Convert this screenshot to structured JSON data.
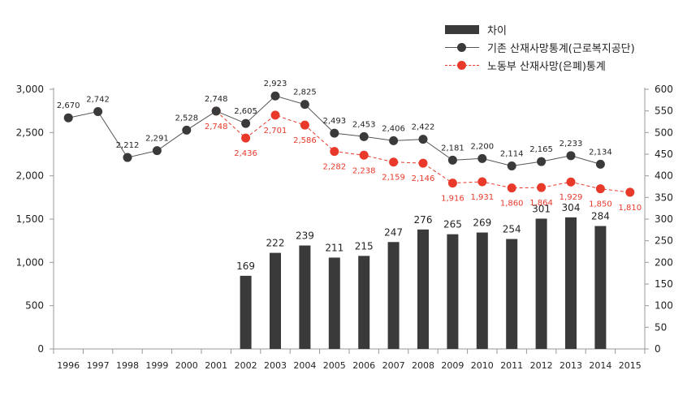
{
  "chart_data": {
    "type": "bar+line",
    "categories": [
      "1996",
      "1997",
      "1998",
      "1999",
      "2000",
      "2001",
      "2002",
      "2003",
      "2004",
      "2005",
      "2006",
      "2007",
      "2008",
      "2009",
      "2010",
      "2011",
      "2012",
      "2013",
      "2014",
      "2015"
    ],
    "left_axis": {
      "ylim": [
        0,
        3000
      ],
      "ticks": [
        "0",
        "500",
        "1,000",
        "1,500",
        "2,000",
        "2,500",
        "3,000"
      ]
    },
    "right_axis": {
      "ylim": [
        0,
        600
      ],
      "ticks": [
        "0",
        "50",
        "100",
        "150",
        "200",
        "250",
        "300",
        "350",
        "400",
        "450",
        "500",
        "550",
        "600"
      ]
    },
    "series": [
      {
        "name": "차이",
        "type": "bar",
        "axis": "right",
        "color": "#3a3a3a",
        "values": [
          null,
          null,
          null,
          null,
          null,
          null,
          169,
          222,
          239,
          211,
          215,
          247,
          276,
          265,
          269,
          254,
          301,
          304,
          284,
          null
        ],
        "labels": [
          "",
          "",
          "",
          "",
          "",
          "",
          "169",
          "222",
          "239",
          "211",
          "215",
          "247",
          "276",
          "265",
          "269",
          "254",
          "301",
          "304",
          "284",
          ""
        ]
      },
      {
        "name": "기존 산재사망통계(근로복지공단)",
        "type": "line",
        "axis": "left",
        "color": "#3a3a3a",
        "values": [
          2670,
          2742,
          2212,
          2291,
          2528,
          2748,
          2605,
          2923,
          2825,
          2493,
          2453,
          2406,
          2422,
          2181,
          2200,
          2114,
          2165,
          2233,
          2134,
          null
        ],
        "labels": [
          "2,670",
          "2,742",
          "2,212",
          "2,291",
          "2,528",
          "2,748",
          "2,605",
          "2,923",
          "2,825",
          "2,493",
          "2,453",
          "2,406",
          "2,422",
          "2,181",
          "2,200",
          "2,114",
          "2,165",
          "2,233",
          "2,134",
          ""
        ]
      },
      {
        "name": "노동부 산재사망(은폐)통계",
        "type": "line",
        "axis": "left",
        "color": "#e8392a",
        "values": [
          null,
          null,
          null,
          null,
          null,
          2748,
          2436,
          2701,
          2586,
          2282,
          2238,
          2159,
          2146,
          1916,
          1931,
          1860,
          1864,
          1929,
          1850,
          1810
        ],
        "labels": [
          "",
          "",
          "",
          "",
          "",
          "2,748",
          "2,436",
          "2,701",
          "2,586",
          "2,282",
          "2,238",
          "2,159",
          "2,146",
          "1,916",
          "1,931",
          "1,860",
          "1,864",
          "1,929",
          "1,850",
          "1,810"
        ]
      }
    ],
    "legend_position": "top-right",
    "grid": false
  }
}
